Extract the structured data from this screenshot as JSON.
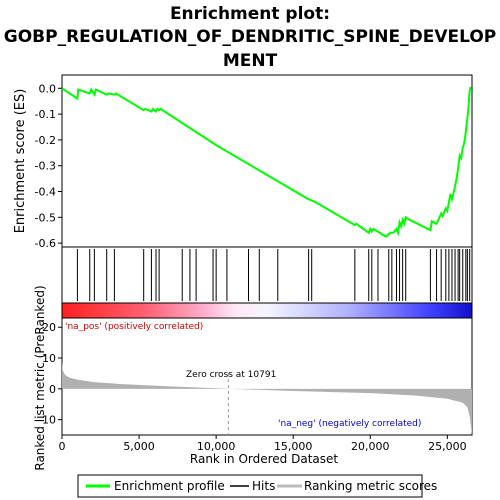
{
  "chart_data": {
    "type": "line",
    "title_lines": [
      "Enrichment plot:",
      "GOBP_REGULATION_OF_DENDRITIC_SPINE_DEVELOP",
      "MENT"
    ],
    "es_panel": {
      "ylabel": "Enrichment score (ES)",
      "ylim": [
        -0.6,
        0.02
      ],
      "yticks": [
        0.0,
        -0.1,
        -0.2,
        -0.3,
        -0.4,
        -0.5,
        -0.6
      ],
      "ytick_labels": [
        "0.0",
        "-0.1",
        "-0.2",
        "-0.3",
        "-0.4",
        "-0.5",
        "-0.6"
      ],
      "series": [
        {
          "name": "Enrichment profile",
          "color": "#00ff00",
          "x": [
            0,
            1000,
            1050,
            1800,
            1900,
            2100,
            2200,
            2900,
            3000,
            3400,
            3500,
            5300,
            5400,
            5800,
            5900,
            6100,
            6200,
            6300,
            6400,
            10000,
            16000,
            16200,
            16400,
            19000,
            19100,
            19900,
            20000,
            20100,
            20200,
            21000,
            21300,
            21500,
            21700,
            21800,
            21900,
            22000,
            22100,
            22200,
            22300,
            22400,
            23900,
            24000,
            24300,
            24600,
            24700,
            24900,
            25000,
            25200,
            25300,
            25500,
            25600,
            25700,
            25800,
            25900,
            26000,
            26100,
            26200,
            26250,
            26300,
            26350,
            26400,
            26450,
            26500
          ],
          "y": [
            0.0,
            -0.04,
            -0.005,
            -0.02,
            -0.005,
            -0.025,
            -0.005,
            -0.025,
            -0.02,
            -0.025,
            -0.02,
            -0.085,
            -0.08,
            -0.09,
            -0.08,
            -0.09,
            -0.08,
            -0.085,
            -0.08,
            -0.22,
            -0.43,
            -0.435,
            -0.44,
            -0.53,
            -0.525,
            -0.56,
            -0.545,
            -0.555,
            -0.545,
            -0.575,
            -0.56,
            -0.56,
            -0.545,
            -0.56,
            -0.52,
            -0.535,
            -0.51,
            -0.525,
            -0.5,
            -0.505,
            -0.55,
            -0.515,
            -0.525,
            -0.485,
            -0.495,
            -0.465,
            -0.475,
            -0.41,
            -0.43,
            -0.38,
            -0.35,
            -0.31,
            -0.26,
            -0.27,
            -0.23,
            -0.21,
            -0.17,
            -0.14,
            -0.115,
            -0.09,
            -0.05,
            -0.01,
            0.005
          ]
        }
      ]
    },
    "hits": [
      1000,
      1800,
      2100,
      2900,
      3400,
      5300,
      5800,
      6100,
      6300,
      7800,
      8300,
      8700,
      9800,
      10000,
      10700,
      12100,
      12800,
      14000,
      16000,
      16200,
      19000,
      19900,
      20100,
      20500,
      21200,
      21400,
      21700,
      21900,
      22100,
      22300,
      23900,
      24300,
      24600,
      24900,
      25100,
      25300,
      25500,
      25700,
      25800,
      26000,
      26200,
      26300,
      26450
    ],
    "ranking_panel": {
      "ylabel": "Ranked list metric (PreRanked)",
      "ylim": [
        -15,
        23
      ],
      "yticks": [
        20,
        10,
        0,
        -10
      ],
      "ytick_labels": [
        "20",
        "10",
        "0",
        "-10"
      ],
      "xlabel": "Rank in Ordered Dataset",
      "xlim": [
        0,
        26600
      ],
      "xticks": [
        0,
        5000,
        10000,
        15000,
        20000,
        25000
      ],
      "xtick_labels": [
        "0",
        "5,000",
        "10,000",
        "15,000",
        "20,000",
        "25,000"
      ],
      "zero_cross_rank": 10791,
      "zero_cross_label": "Zero cross at 10791",
      "pos_label": "'na_pos' (positively correlated)",
      "neg_label": "'na_neg' (negatively correlated)",
      "metric_curve": {
        "x": [
          0,
          50,
          200,
          500,
          1000,
          2000,
          4000,
          7000,
          10791,
          15000,
          20000,
          23000,
          25000,
          26000,
          26300,
          26450,
          26550,
          26600
        ],
        "y": [
          9,
          6,
          4.5,
          3.6,
          3.0,
          2.2,
          1.5,
          0.8,
          0,
          -0.7,
          -1.4,
          -2.2,
          -3.2,
          -4.5,
          -6,
          -9,
          -13,
          -15
        ]
      }
    },
    "legend": {
      "items": [
        {
          "label": "Enrichment profile",
          "color": "#00ff00"
        },
        {
          "label": "Hits",
          "color": "#000000"
        },
        {
          "label": "Ranking metric scores",
          "color": "#bbbbbb"
        }
      ]
    },
    "colors": {
      "profile": "#00ff00",
      "metric_fill": "#b0b0b0",
      "pos_text": "#cc0000",
      "neg_text": "#0000cc"
    }
  }
}
